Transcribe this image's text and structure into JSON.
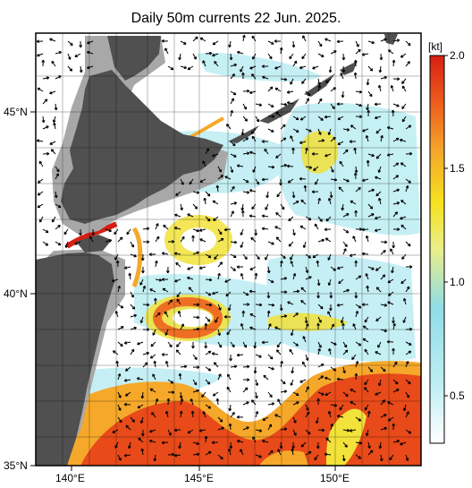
{
  "title": "Daily 50m currents 22 Jun. 2025.",
  "colorbar": {
    "unit": "[kt]",
    "ticks": [
      "2.0",
      "1.5",
      "1.0",
      "0.5"
    ]
  },
  "axes": {
    "lat_ticks": [
      "45°N",
      "40°N",
      "35°N"
    ],
    "lon_ticks": [
      "140°E",
      "145°E",
      "150°E"
    ]
  },
  "colors": {
    "land": "#505050",
    "shelf": "#a8a8a8",
    "weak": "#a8e6ef",
    "moderate": "#f2e23a",
    "strong": "#e84a1a",
    "max": "#d51f14"
  }
}
